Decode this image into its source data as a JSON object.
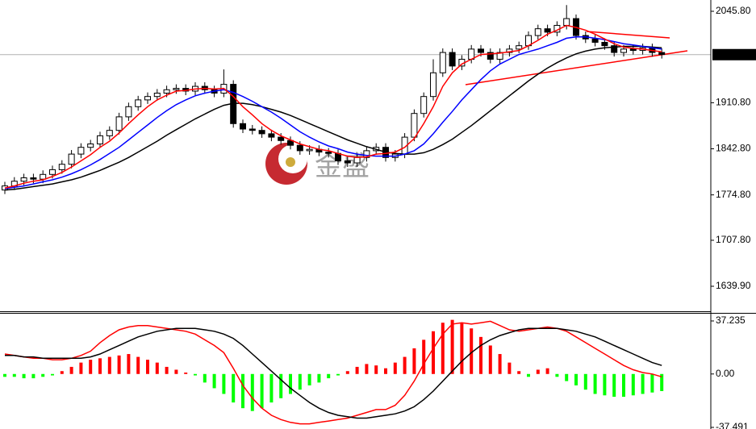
{
  "chart_data": [
    {
      "type": "candlestick",
      "watermark": "金盛",
      "up_color": "#ffffff",
      "down_color": "#000000",
      "open": [
        1782,
        1788,
        1795,
        1800,
        1798,
        1805,
        1812,
        1820,
        1835,
        1845,
        1850,
        1862,
        1870,
        1890,
        1905,
        1915,
        1920,
        1925,
        1930,
        1932,
        1928,
        1935,
        1930,
        1925,
        1938,
        1880,
        1872,
        1870,
        1865,
        1860,
        1855,
        1848,
        1840,
        1842,
        1838,
        1836,
        1825,
        1822,
        1830,
        1840,
        1845,
        1830,
        1835,
        1860,
        1895,
        1920,
        1955,
        1985,
        1965,
        1975,
        1990,
        1985,
        1975,
        1985,
        1990,
        1995,
        2010,
        2020,
        2015,
        2025,
        2035,
        2010,
        2005,
        2000,
        1995,
        1985,
        1990,
        1988,
        1992,
        1985
      ],
      "high": [
        1794,
        1801,
        1806,
        1806,
        1811,
        1818,
        1826,
        1841,
        1851,
        1856,
        1868,
        1876,
        1896,
        1911,
        1921,
        1926,
        1931,
        1936,
        1938,
        1938,
        1941,
        1941,
        1936,
        1960,
        1944,
        1886,
        1878,
        1876,
        1871,
        1866,
        1861,
        1854,
        1848,
        1848,
        1844,
        1842,
        1831,
        1836,
        1846,
        1851,
        1851,
        1841,
        1866,
        1901,
        1926,
        1975,
        1991,
        1991,
        1981,
        1996,
        1996,
        1991,
        1991,
        1996,
        2001,
        2016,
        2026,
        2026,
        2031,
        2055,
        2041,
        2016,
        2011,
        2006,
        2001,
        1996,
        1996,
        1998,
        1998,
        1991
      ],
      "low": [
        1776,
        1782,
        1789,
        1792,
        1792,
        1799,
        1806,
        1814,
        1829,
        1839,
        1844,
        1856,
        1864,
        1884,
        1899,
        1909,
        1914,
        1919,
        1924,
        1922,
        1922,
        1924,
        1919,
        1919,
        1874,
        1866,
        1864,
        1859,
        1854,
        1849,
        1842,
        1834,
        1834,
        1832,
        1830,
        1819,
        1816,
        1816,
        1824,
        1834,
        1824,
        1824,
        1829,
        1854,
        1889,
        1914,
        1949,
        1959,
        1959,
        1969,
        1979,
        1969,
        1969,
        1979,
        1984,
        1989,
        2004,
        2009,
        2009,
        2019,
        2004,
        1999,
        1994,
        1989,
        1979,
        1979,
        1982,
        1982,
        1979,
        1976
      ],
      "close": [
        1788,
        1795,
        1800,
        1798,
        1805,
        1812,
        1820,
        1835,
        1845,
        1850,
        1862,
        1870,
        1890,
        1905,
        1915,
        1920,
        1925,
        1930,
        1932,
        1928,
        1935,
        1930,
        1925,
        1938,
        1880,
        1872,
        1870,
        1865,
        1860,
        1855,
        1848,
        1840,
        1842,
        1838,
        1836,
        1825,
        1822,
        1830,
        1840,
        1845,
        1830,
        1835,
        1860,
        1895,
        1920,
        1955,
        1985,
        1965,
        1975,
        1990,
        1985,
        1975,
        1985,
        1990,
        1995,
        2010,
        2020,
        2015,
        2025,
        2035,
        2010,
        2005,
        2000,
        1995,
        1985,
        1990,
        1988,
        1992,
        1985,
        1982
      ],
      "series": [
        {
          "color": "#000000",
          "values": [
            1782,
            1783,
            1785,
            1787,
            1789,
            1791,
            1794,
            1797,
            1801,
            1806,
            1811,
            1817,
            1823,
            1830,
            1838,
            1846,
            1854,
            1863,
            1871,
            1879,
            1887,
            1894,
            1901,
            1907,
            1910,
            1910,
            1908,
            1905,
            1901,
            1897,
            1892,
            1886,
            1880,
            1874,
            1868,
            1862,
            1856,
            1851,
            1846,
            1842,
            1838,
            1836,
            1835,
            1835,
            1837,
            1842,
            1849,
            1857,
            1867,
            1877,
            1888,
            1899,
            1910,
            1921,
            1932,
            1943,
            1953,
            1962,
            1970,
            1977,
            1983,
            1987,
            1990,
            1992,
            1993,
            1994,
            1994,
            1994,
            1993,
            1992
          ]
        },
        {
          "color": "#0000ff",
          "values": [
            1784,
            1786,
            1788,
            1791,
            1794,
            1797,
            1801,
            1806,
            1812,
            1819,
            1827,
            1836,
            1845,
            1856,
            1867,
            1878,
            1889,
            1899,
            1908,
            1915,
            1921,
            1925,
            1928,
            1930,
            1926,
            1920,
            1913,
            1905,
            1897,
            1888,
            1878,
            1868,
            1860,
            1853,
            1847,
            1843,
            1838,
            1835,
            1833,
            1832,
            1832,
            1832,
            1835,
            1840,
            1850,
            1865,
            1882,
            1898,
            1915,
            1930,
            1945,
            1958,
            1968,
            1975,
            1982,
            1986,
            1990,
            1995,
            2000,
            2006,
            2008,
            2008,
            2006,
            2004,
            2001,
            1998,
            1996,
            1994,
            1992,
            1990
          ]
        },
        {
          "color": "#ff0000",
          "values": [
            1785,
            1788,
            1792,
            1795,
            1797,
            1802,
            1808,
            1816,
            1825,
            1834,
            1845,
            1854,
            1866,
            1880,
            1893,
            1905,
            1915,
            1922,
            1928,
            1929,
            1931,
            1932,
            1931,
            1932,
            1920,
            1905,
            1893,
            1880,
            1870,
            1862,
            1856,
            1850,
            1846,
            1842,
            1840,
            1836,
            1832,
            1830,
            1831,
            1835,
            1836,
            1838,
            1845,
            1858,
            1880,
            1905,
            1935,
            1955,
            1968,
            1975,
            1982,
            1983,
            1984,
            1986,
            1988,
            1995,
            2003,
            2012,
            2018,
            2025,
            2022,
            2018,
            2012,
            2005,
            1998,
            1993,
            1991,
            1990,
            1988,
            1986
          ]
        }
      ],
      "ylim": [
        1604.19,
        2062.46
      ],
      "yticks": [
        {
          "value": 2045.8,
          "label": "2045.80"
        },
        {
          "value": 1910.8,
          "label": "1910.80"
        },
        {
          "value": 1842.8,
          "label": "1842.80"
        },
        {
          "value": 1774.8,
          "label": "1774.80"
        },
        {
          "value": 1707.8,
          "label": "1707.80"
        },
        {
          "value": 1639.9,
          "label": "1639.90"
        }
      ],
      "last_price": {
        "value": 1981.81,
        "label": "1981.81"
      }
    },
    {
      "type": "macd",
      "up_color": "#ff0000",
      "down_color": "#00ff00",
      "values": [
        -2,
        -2,
        -3,
        -3,
        -2,
        -1,
        2,
        5,
        8,
        10,
        11,
        12,
        13,
        14,
        12,
        10,
        8,
        5,
        3,
        1,
        -1,
        -6,
        -10,
        -14,
        -20,
        -24,
        -26,
        -24,
        -20,
        -17,
        -14,
        -11,
        -8,
        -6,
        -3,
        -1,
        2,
        5,
        7,
        6,
        4,
        8,
        12,
        18,
        24,
        30,
        36,
        38,
        36,
        32,
        26,
        20,
        14,
        8,
        2,
        -2,
        3,
        4,
        -2,
        -5,
        -8,
        -11,
        -14,
        -15,
        -16,
        -16,
        -15,
        -14,
        -13,
        -12
      ],
      "series": [
        {
          "color": "#ff0000",
          "values": [
            14,
            13,
            12,
            11,
            11,
            10,
            10,
            11,
            13,
            16,
            22,
            27,
            31,
            33,
            34,
            34,
            33,
            32,
            31,
            30,
            28,
            24,
            20,
            15,
            4,
            -8,
            -17,
            -24,
            -29,
            -32,
            -34,
            -35,
            -35,
            -34,
            -33,
            -32,
            -31,
            -29,
            -27,
            -25,
            -25,
            -22,
            -15,
            -5,
            7,
            18,
            28,
            35,
            36,
            35,
            36,
            37,
            34,
            31,
            30,
            31,
            32,
            33,
            32,
            30,
            26,
            22,
            18,
            14,
            10,
            6,
            3,
            1,
            0,
            -2
          ]
        },
        {
          "color": "#000000",
          "values": [
            13,
            13,
            12,
            12,
            11,
            11,
            11,
            11,
            11,
            12,
            14,
            17,
            20,
            23,
            26,
            28,
            30,
            31,
            32,
            32,
            32,
            31,
            30,
            28,
            25,
            20,
            14,
            8,
            2,
            -4,
            -10,
            -15,
            -20,
            -24,
            -27,
            -29,
            -30,
            -31,
            -31,
            -30,
            -29,
            -28,
            -26,
            -23,
            -18,
            -12,
            -5,
            2,
            9,
            15,
            20,
            24,
            27,
            29,
            31,
            32,
            32,
            32,
            32,
            31,
            30,
            28,
            26,
            23,
            20,
            17,
            14,
            11,
            8,
            6
          ]
        }
      ],
      "ylim": [
        -37.491,
        37.235
      ],
      "yticks": [
        {
          "value": 37.235,
          "label": "37.235"
        },
        {
          "value": 0,
          "label": "0.00"
        },
        {
          "value": -37.491,
          "label": "-37.491"
        }
      ]
    }
  ]
}
